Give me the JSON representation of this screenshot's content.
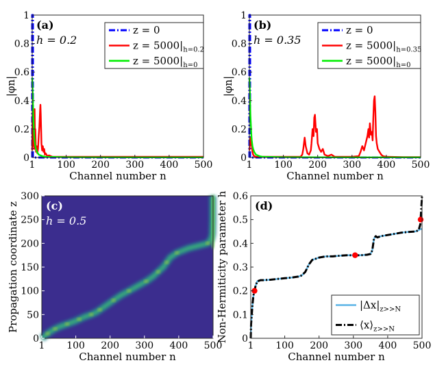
{
  "chart_data": [
    {
      "id": "a",
      "type": "line",
      "panel_label": "(a)",
      "annotation": "h = 0.2",
      "xlabel": "Channel number n",
      "ylabel": "|φn|",
      "xlim": [
        1,
        500
      ],
      "ylim": [
        0,
        1
      ],
      "xticks": [
        "1",
        "100",
        "200",
        "300",
        "400",
        "500"
      ],
      "yticks": [
        "0",
        "0.2",
        "0.4",
        "0.6",
        "0.8",
        "1"
      ],
      "legend": [
        "z = 0",
        "z = 5000|h=0.2",
        "z = 5000|h=0"
      ],
      "legend_main": [
        "z = 0",
        "z = 5000|",
        "z = 5000|"
      ],
      "legend_sub": [
        "",
        "h=0.2",
        "h=0"
      ],
      "series": [
        {
          "name": "z = 0",
          "color": "#0000ff",
          "style": "dashdot",
          "x": [
            1,
            1,
            3,
            3,
            500
          ],
          "y": [
            0,
            1,
            1,
            0,
            0
          ]
        },
        {
          "name": "z = 5000|h=0.2",
          "color": "#ff0000",
          "style": "solid",
          "x": [
            1,
            2,
            3,
            4,
            5,
            6,
            7,
            8,
            9,
            10,
            12,
            14,
            16,
            18,
            20,
            22,
            24,
            25,
            26,
            27,
            28,
            30,
            32,
            34,
            36,
            38,
            40,
            45,
            50,
            60,
            100,
            200,
            300,
            400,
            500
          ],
          "y": [
            0.05,
            0.32,
            0.12,
            0.2,
            0.08,
            0.18,
            0.06,
            0.34,
            0.15,
            0.2,
            0.04,
            0.08,
            0.03,
            0.06,
            0.15,
            0.22,
            0.33,
            0.37,
            0.3,
            0.2,
            0.1,
            0.05,
            0.08,
            0.04,
            0.06,
            0.02,
            0.03,
            0.01,
            0.015,
            0.005,
            0.005,
            0.005,
            0.005,
            0.005,
            0.005
          ]
        },
        {
          "name": "z = 5000|h=0",
          "color": "#00ee00",
          "style": "solid",
          "x": [
            1,
            2,
            3,
            4,
            5,
            6,
            7,
            8,
            10,
            12,
            15,
            20,
            30,
            40,
            100,
            300,
            500
          ],
          "y": [
            0.56,
            0.5,
            0.4,
            0.3,
            0.25,
            0.2,
            0.15,
            0.12,
            0.08,
            0.06,
            0.04,
            0.02,
            0.01,
            0.005,
            0.002,
            0.001,
            0.001
          ]
        }
      ]
    },
    {
      "id": "b",
      "type": "line",
      "panel_label": "(b)",
      "annotation": "h = 0.35",
      "xlabel": "Channel number n",
      "ylabel": "|φn|",
      "xlim": [
        1,
        500
      ],
      "ylim": [
        0,
        1
      ],
      "xticks": [
        "1",
        "100",
        "200",
        "300",
        "400",
        "500"
      ],
      "yticks": [
        "0",
        "0.2",
        "0.4",
        "0.6",
        "0.8",
        "1"
      ],
      "legend": [
        "z = 0",
        "z = 5000|h=0.35",
        "z = 5000|h=0"
      ],
      "legend_main": [
        "z = 0",
        "z = 5000|",
        "z = 5000|"
      ],
      "legend_sub": [
        "",
        "h=0.35",
        "h=0"
      ],
      "series": [
        {
          "name": "z = 0",
          "color": "#0000ff",
          "style": "dashdot",
          "x": [
            1,
            1,
            3,
            3,
            500
          ],
          "y": [
            0,
            1,
            1,
            0,
            0
          ]
        },
        {
          "name": "z = 5000|h=0.35",
          "color": "#ff0000",
          "style": "solid",
          "x": [
            1,
            3,
            5,
            8,
            10,
            12,
            15,
            20,
            100,
            150,
            155,
            158,
            160,
            162,
            165,
            168,
            170,
            175,
            180,
            182,
            185,
            188,
            190,
            192,
            195,
            198,
            200,
            205,
            210,
            215,
            220,
            230,
            240,
            250,
            300,
            320,
            325,
            330,
            335,
            340,
            345,
            348,
            350,
            352,
            355,
            358,
            360,
            362,
            364,
            366,
            368,
            370,
            372,
            375,
            380,
            385,
            390,
            400,
            450,
            500
          ],
          "y": [
            0.05,
            0.1,
            0.14,
            0.08,
            0.04,
            0.02,
            0.01,
            0.005,
            0.005,
            0.005,
            0.02,
            0.06,
            0.1,
            0.14,
            0.08,
            0.05,
            0.03,
            0.02,
            0.05,
            0.1,
            0.2,
            0.15,
            0.28,
            0.3,
            0.18,
            0.2,
            0.1,
            0.06,
            0.04,
            0.06,
            0.02,
            0.01,
            0.02,
            0.005,
            0.005,
            0.01,
            0.04,
            0.08,
            0.05,
            0.1,
            0.15,
            0.2,
            0.14,
            0.24,
            0.16,
            0.18,
            0.12,
            0.28,
            0.4,
            0.43,
            0.32,
            0.15,
            0.1,
            0.06,
            0.04,
            0.02,
            0.01,
            0.005,
            0.003,
            0.003
          ]
        },
        {
          "name": "z = 5000|h=0",
          "color": "#00ee00",
          "style": "solid",
          "x": [
            1,
            2,
            3,
            4,
            5,
            6,
            7,
            8,
            10,
            12,
            15,
            20,
            30,
            40,
            100,
            300,
            500
          ],
          "y": [
            0.56,
            0.5,
            0.4,
            0.3,
            0.25,
            0.2,
            0.15,
            0.12,
            0.08,
            0.06,
            0.04,
            0.02,
            0.01,
            0.005,
            0.002,
            0.001,
            0.001
          ]
        }
      ]
    },
    {
      "id": "c",
      "type": "heatmap",
      "panel_label": "(c)",
      "annotation": "h = 0.5",
      "xlabel": "Channel number n",
      "ylabel": "Propagation coordinate z",
      "xlim": [
        1,
        500
      ],
      "ylim": [
        0,
        300
      ],
      "xticks": [
        "1",
        "100",
        "200",
        "300",
        "400",
        "500"
      ],
      "yticks": [
        "0",
        "50",
        "100",
        "150",
        "200",
        "250",
        "300"
      ],
      "background_color": "#3b2d8e",
      "trajectory": {
        "z": [
          0,
          5,
          10,
          15,
          20,
          25,
          30,
          35,
          40,
          45,
          50,
          55,
          60,
          70,
          80,
          90,
          100,
          110,
          120,
          130,
          140,
          150,
          160,
          170,
          180,
          190,
          200,
          210,
          220,
          250,
          280,
          300
        ],
        "n": [
          1,
          10,
          18,
          28,
          40,
          55,
          75,
          95,
          110,
          125,
          145,
          160,
          170,
          190,
          210,
          230,
          255,
          280,
          305,
          325,
          340,
          355,
          365,
          375,
          395,
          430,
          485,
          495,
          498,
          499,
          499,
          499
        ]
      }
    },
    {
      "id": "d",
      "type": "line",
      "panel_label": "(d)",
      "xlabel": "Channel number n",
      "ylabel": "Non-Hermiticity parameter h",
      "xlim": [
        1,
        500
      ],
      "ylim": [
        0,
        0.6
      ],
      "xticks": [
        "1",
        "100",
        "200",
        "300",
        "400",
        "500"
      ],
      "yticks": [
        "0",
        "0.1",
        "0.2",
        "0.3",
        "0.4",
        "0.5",
        "0.6"
      ],
      "legend": [
        "|Δx|z>>N",
        "⟨x⟩z>>N"
      ],
      "legend_main": [
        "|Δx|",
        "⟨x⟩"
      ],
      "legend_sub": [
        "z>>N",
        "z>>N"
      ],
      "series": [
        {
          "name": "|Δx|z>>N",
          "color": "#5ab4e6",
          "style": "solid",
          "x": [
            1,
            2,
            4,
            6,
            8,
            10,
            12,
            15,
            20,
            30,
            40,
            60,
            80,
            100,
            120,
            140,
            150,
            160,
            170,
            180,
            190,
            200,
            220,
            240,
            260,
            280,
            300,
            320,
            340,
            350,
            355,
            360,
            365,
            370,
            380,
            400,
            420,
            440,
            460,
            480,
            490,
            495,
            500
          ],
          "y": [
            0.0,
            0.06,
            0.1,
            0.14,
            0.17,
            0.19,
            0.2,
            0.22,
            0.24,
            0.245,
            0.245,
            0.247,
            0.25,
            0.253,
            0.256,
            0.26,
            0.265,
            0.28,
            0.31,
            0.33,
            0.335,
            0.34,
            0.345,
            0.345,
            0.348,
            0.35,
            0.35,
            0.35,
            0.352,
            0.355,
            0.37,
            0.42,
            0.43,
            0.425,
            0.43,
            0.435,
            0.44,
            0.445,
            0.448,
            0.45,
            0.455,
            0.46,
            0.46
          ]
        },
        {
          "name": "⟨x⟩z>>N",
          "color": "#000000",
          "style": "dashdot",
          "x": [
            1,
            2,
            4,
            6,
            8,
            10,
            12,
            15,
            20,
            30,
            40,
            60,
            80,
            100,
            120,
            140,
            150,
            160,
            170,
            180,
            190,
            200,
            220,
            240,
            260,
            280,
            300,
            320,
            340,
            350,
            355,
            360,
            365,
            370,
            380,
            400,
            420,
            440,
            460,
            480,
            490,
            495,
            498,
            500
          ],
          "y": [
            0.0,
            0.06,
            0.1,
            0.14,
            0.17,
            0.19,
            0.2,
            0.22,
            0.24,
            0.245,
            0.245,
            0.247,
            0.25,
            0.253,
            0.256,
            0.26,
            0.265,
            0.28,
            0.31,
            0.33,
            0.335,
            0.34,
            0.345,
            0.345,
            0.348,
            0.35,
            0.35,
            0.35,
            0.352,
            0.355,
            0.37,
            0.42,
            0.43,
            0.425,
            0.43,
            0.435,
            0.44,
            0.445,
            0.448,
            0.45,
            0.455,
            0.48,
            0.55,
            0.6
          ]
        },
        {
          "name": "markers",
          "color": "#ff0000",
          "style": "marker",
          "x": [
            12,
            305,
            496
          ],
          "y": [
            0.2,
            0.35,
            0.5
          ]
        }
      ]
    }
  ]
}
